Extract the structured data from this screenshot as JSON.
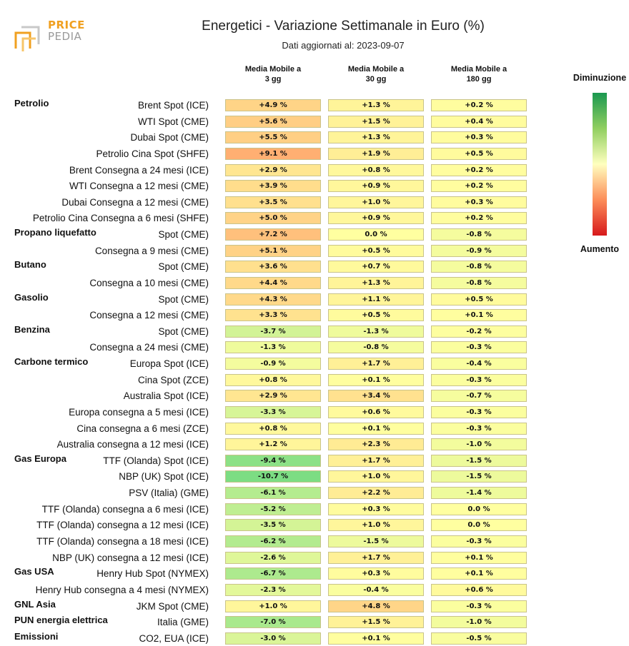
{
  "logo": {
    "line1": "PRICE",
    "line2": "PEDIA"
  },
  "chart_data": {
    "type": "heatmap",
    "title": "Energetici - Variazione Settimanale in Euro (%)",
    "subtitle": "Dati aggiornati al: 2023-09-07",
    "columns": [
      "Media Mobile a\n3 gg",
      "Media Mobile a\n30 gg",
      "Media Mobile a\n180 gg"
    ],
    "legend": {
      "top": "Diminuzione",
      "bottom": "Aumento"
    },
    "rows": [
      {
        "group": "Petrolio",
        "label": "Brent Spot (ICE)",
        "values": [
          4.9,
          1.3,
          0.2
        ]
      },
      {
        "group": "",
        "label": "WTI Spot (CME)",
        "values": [
          5.6,
          1.5,
          0.4
        ]
      },
      {
        "group": "",
        "label": "Dubai Spot (CME)",
        "values": [
          5.5,
          1.3,
          0.3
        ]
      },
      {
        "group": "",
        "label": "Petrolio Cina Spot (SHFE)",
        "values": [
          9.1,
          1.9,
          0.5
        ]
      },
      {
        "group": "",
        "label": "Brent Consegna a 24 mesi (ICE)",
        "values": [
          2.9,
          0.8,
          0.2
        ]
      },
      {
        "group": "",
        "label": "WTI Consegna a 12 mesi (CME)",
        "values": [
          3.9,
          0.9,
          0.2
        ]
      },
      {
        "group": "",
        "label": "Dubai Consegna a 12 mesi (CME)",
        "values": [
          3.5,
          1.0,
          0.3
        ]
      },
      {
        "group": "",
        "label": "Petrolio Cina Consegna a 6 mesi (SHFE)",
        "values": [
          5.0,
          0.9,
          0.2
        ]
      },
      {
        "group": "Propano liquefatto",
        "label": "Spot (CME)",
        "values": [
          7.2,
          0.0,
          -0.8
        ]
      },
      {
        "group": "",
        "label": "Consegna a 9 mesi (CME)",
        "values": [
          5.1,
          0.5,
          -0.9
        ]
      },
      {
        "group": "Butano",
        "label": "Spot (CME)",
        "values": [
          3.6,
          0.7,
          -0.8
        ]
      },
      {
        "group": "",
        "label": "Consegna a 10 mesi (CME)",
        "values": [
          4.4,
          1.3,
          -0.8
        ]
      },
      {
        "group": "Gasolio",
        "label": "Spot (CME)",
        "values": [
          4.3,
          1.1,
          0.5
        ]
      },
      {
        "group": "",
        "label": "Consegna a 12 mesi (CME)",
        "values": [
          3.3,
          0.5,
          0.1
        ]
      },
      {
        "group": "Benzina",
        "label": "Spot (CME)",
        "values": [
          -3.7,
          -1.3,
          -0.2
        ]
      },
      {
        "group": "",
        "label": "Consegna a 24 mesi (CME)",
        "values": [
          -1.3,
          -0.8,
          -0.3
        ]
      },
      {
        "group": "Carbone termico",
        "label": "Europa Spot (ICE)",
        "values": [
          -0.9,
          1.7,
          -0.4
        ]
      },
      {
        "group": "",
        "label": "Cina Spot (ZCE)",
        "values": [
          0.8,
          0.1,
          -0.3
        ]
      },
      {
        "group": "",
        "label": "Australia Spot (ICE)",
        "values": [
          2.9,
          3.4,
          -0.7
        ]
      },
      {
        "group": "",
        "label": "Europa consegna a 5 mesi (ICE)",
        "values": [
          -3.3,
          0.6,
          -0.3
        ]
      },
      {
        "group": "",
        "label": "Cina consegna a 6 mesi (ZCE)",
        "values": [
          0.8,
          0.1,
          -0.3
        ]
      },
      {
        "group": "",
        "label": "Australia consegna a 12 mesi (ICE)",
        "values": [
          1.2,
          2.3,
          -1.0
        ]
      },
      {
        "group": "Gas Europa",
        "label": "TTF (Olanda) Spot (ICE)",
        "values": [
          -9.4,
          1.7,
          -1.5
        ]
      },
      {
        "group": "",
        "label": "NBP (UK) Spot (ICE)",
        "values": [
          -10.7,
          1.0,
          -1.5
        ]
      },
      {
        "group": "",
        "label": "PSV (Italia) (GME)",
        "values": [
          -6.1,
          2.2,
          -1.4
        ]
      },
      {
        "group": "",
        "label": "TTF (Olanda) consegna a 6 mesi (ICE)",
        "values": [
          -5.2,
          0.3,
          0.0
        ]
      },
      {
        "group": "",
        "label": "TTF (Olanda) consegna a 12 mesi (ICE)",
        "values": [
          -3.5,
          1.0,
          0.0
        ]
      },
      {
        "group": "",
        "label": "TTF (Olanda) consegna a 18 mesi (ICE)",
        "values": [
          -6.2,
          -1.5,
          -0.3
        ]
      },
      {
        "group": "",
        "label": "NBP (UK) consegna a 12 mesi (ICE)",
        "values": [
          -2.6,
          1.7,
          0.1
        ]
      },
      {
        "group": "Gas USA",
        "label": "Henry Hub Spot (NYMEX)",
        "values": [
          -6.7,
          0.3,
          0.1
        ]
      },
      {
        "group": "",
        "label": "Henry Hub consegna a 4 mesi (NYMEX)",
        "values": [
          -2.3,
          -0.4,
          0.6
        ]
      },
      {
        "group": "GNL Asia",
        "label": "JKM Spot (CME)",
        "values": [
          1.0,
          4.8,
          -0.3
        ]
      },
      {
        "group": "PUN energia elettrica",
        "label": "Italia (GME)",
        "values": [
          -7.0,
          1.5,
          -1.0
        ]
      },
      {
        "group": "Emissioni",
        "label": "CO2, EUA (ICE)",
        "values": [
          -3.0,
          0.1,
          -0.5
        ]
      }
    ]
  }
}
